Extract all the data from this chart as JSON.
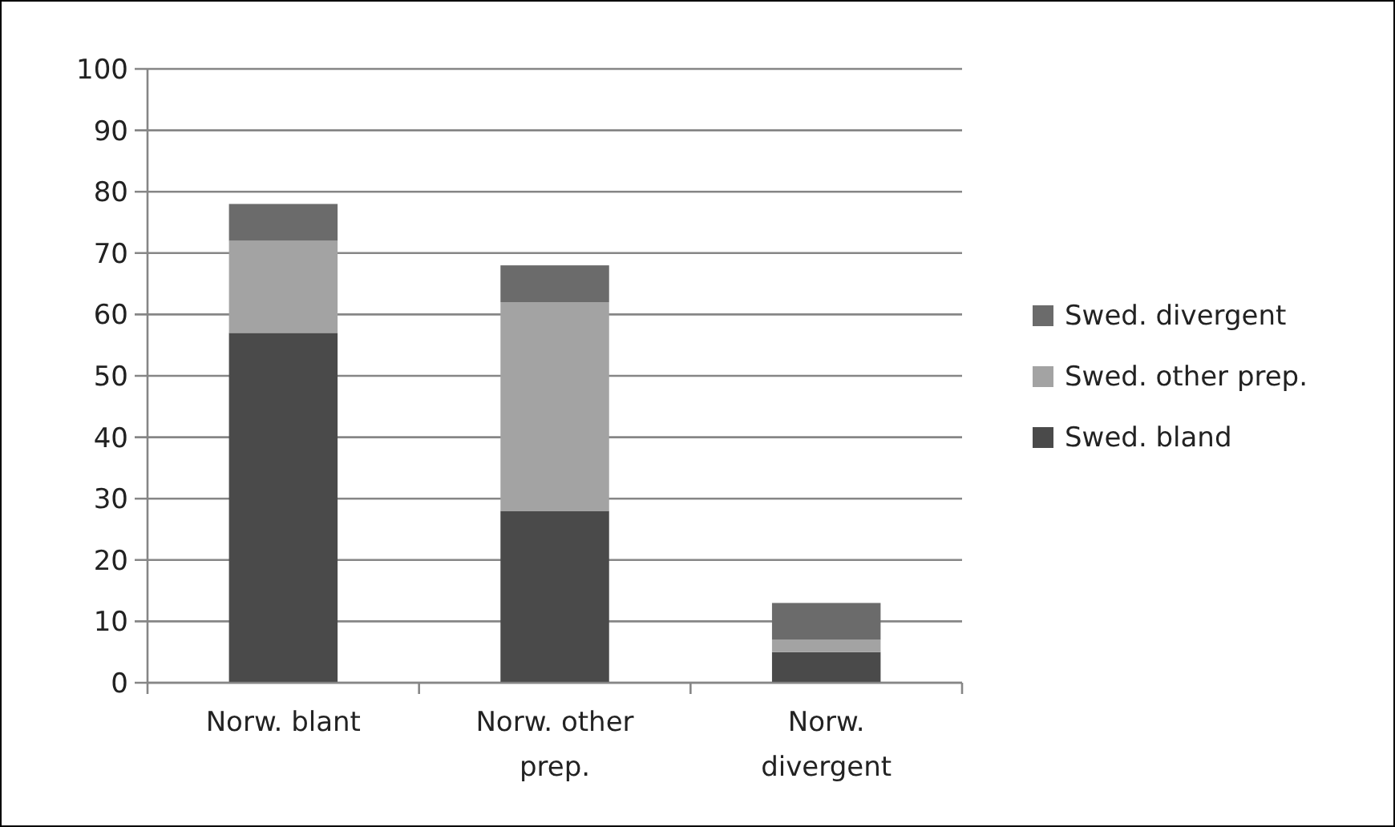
{
  "chart_data": {
    "type": "bar",
    "stacked": true,
    "categories": [
      "Norw. blant",
      "Norw. other prep.",
      "Norw. divergent"
    ],
    "series": [
      {
        "name": "Swed. bland",
        "color": "#4a4a4a",
        "values": [
          57,
          28,
          5
        ]
      },
      {
        "name": "Swed. other prep.",
        "color": "#a3a3a3",
        "values": [
          15,
          34,
          2
        ]
      },
      {
        "name": "Swed. divergent",
        "color": "#6b6b6b",
        "values": [
          6,
          6,
          6
        ]
      }
    ],
    "ylim": [
      0,
      100
    ],
    "yticks": [
      0,
      10,
      20,
      30,
      40,
      50,
      60,
      70,
      80,
      90,
      100
    ],
    "grid": "y",
    "legend": "right"
  }
}
